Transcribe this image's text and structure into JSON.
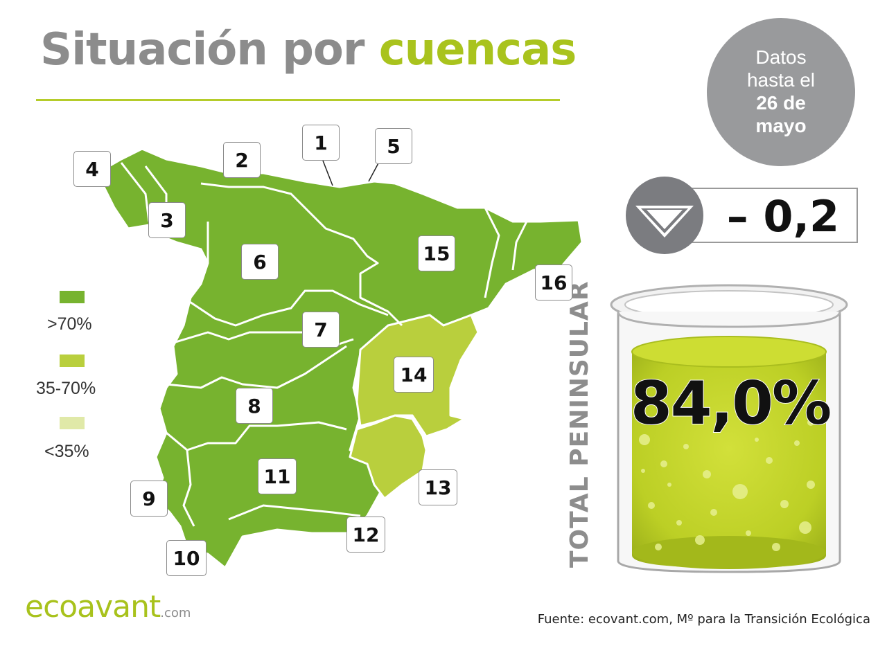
{
  "title": {
    "part1": "Situación por",
    "part2": "cuencas"
  },
  "date_note": {
    "line1": "Datos",
    "line2": "hasta el",
    "line3": "26 de",
    "line4": "mayo"
  },
  "weekly_change": {
    "value": "– 0,2",
    "direction": "down",
    "icon": "down-triangle-icon"
  },
  "total": {
    "label": "TOTAL PENINSULAR",
    "value": "84,0%",
    "fill_level_pct": 84.0
  },
  "legend": [
    {
      "label": ">70%",
      "color": "#77b32f"
    },
    {
      "label": "35-70%",
      "color": "#b9cf3d"
    },
    {
      "label": "<35%",
      "color": "#e0e9a8"
    }
  ],
  "basins": [
    {
      "number": "1",
      "category": ">70%"
    },
    {
      "number": "2",
      "category": ">70%"
    },
    {
      "number": "3",
      "category": ">70%"
    },
    {
      "number": "4",
      "category": ">70%"
    },
    {
      "number": "5",
      "category": ">70%"
    },
    {
      "number": "6",
      "category": ">70%"
    },
    {
      "number": "7",
      "category": ">70%"
    },
    {
      "number": "8",
      "category": ">70%"
    },
    {
      "number": "9",
      "category": ">70%"
    },
    {
      "number": "10",
      "category": ">70%"
    },
    {
      "number": "11",
      "category": ">70%"
    },
    {
      "number": "12",
      "category": ">70%"
    },
    {
      "number": "13",
      "category": "35-70%"
    },
    {
      "number": "14",
      "category": "35-70%"
    },
    {
      "number": "15",
      "category": ">70%"
    },
    {
      "number": "16",
      "category": ">70%"
    }
  ],
  "colors": {
    "title_gray": "#8c8c8c",
    "title_green": "#a9c31d",
    "map_green": "#77b32f",
    "map_light": "#b9cf3d",
    "circle_gray": "#999a9c",
    "glass_liquid": "#c4d62c"
  },
  "footer": {
    "logo": "ecoavant",
    "logo_suffix": ".com",
    "source": "Fuente: ecovant.com, Mº para la Transición Ecológica"
  }
}
